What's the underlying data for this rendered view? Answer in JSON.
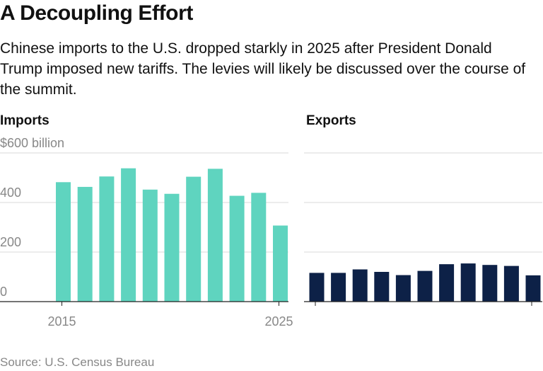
{
  "title": "A Decoupling Effort",
  "subtitle": "Chinese imports to the U.S. dropped starkly in 2025 after President Donald Trump imposed new tariffs. The levies will likely be discussed over the course of the summit.",
  "source": "Source: U.S. Census Bureau",
  "colors": {
    "imports": "#5fd4bf",
    "exports": "#0d2147",
    "grid": "#d9d9d9",
    "axis": "#222222",
    "tick_text": "#888888"
  },
  "chart_data": [
    {
      "type": "bar",
      "title": "Imports",
      "x": [
        2015,
        2016,
        2017,
        2018,
        2019,
        2020,
        2021,
        2022,
        2023,
        2024,
        2025
      ],
      "values": [
        482,
        463,
        505,
        538,
        452,
        435,
        504,
        536,
        427,
        439,
        307
      ],
      "ylim": [
        0,
        600
      ],
      "yticks": [
        0,
        200,
        400,
        600
      ],
      "ytick_labels": [
        "0",
        "200",
        "400",
        "$600 billion"
      ],
      "xtick_labels": [
        "2015",
        "2025"
      ],
      "grid": true
    },
    {
      "type": "bar",
      "title": "Exports",
      "x": [
        2015,
        2016,
        2017,
        2018,
        2019,
        2020,
        2021,
        2022,
        2023,
        2024,
        2025
      ],
      "values": [
        116,
        116,
        130,
        120,
        107,
        124,
        151,
        154,
        148,
        144,
        106
      ],
      "ylim": [
        0,
        600
      ],
      "grid": true
    }
  ]
}
